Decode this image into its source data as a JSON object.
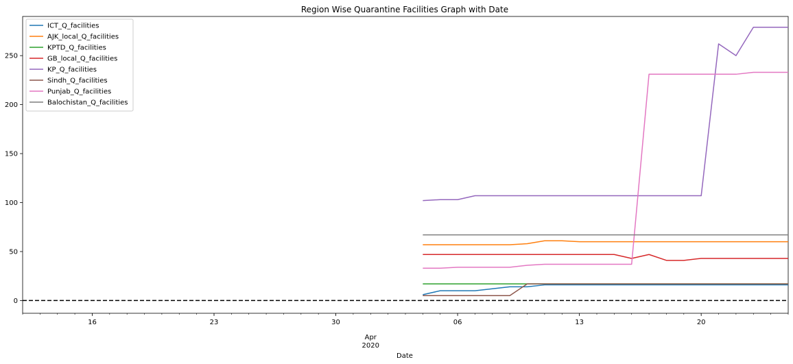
{
  "chart_data": {
    "type": "line",
    "title": "Region Wise Quarantine Facilities Graph with Date",
    "xlabel": "Date",
    "ylabel": "",
    "x_axis": {
      "type": "date",
      "range": [
        "2020-03-12",
        "2020-04-25"
      ],
      "major_ticks": [
        {
          "date": "2020-03-16",
          "label": "16"
        },
        {
          "date": "2020-03-23",
          "label": "23"
        },
        {
          "date": "2020-03-30",
          "label": "30"
        },
        {
          "date": "2020-04-06",
          "label": "06"
        },
        {
          "date": "2020-04-13",
          "label": "13"
        },
        {
          "date": "2020-04-20",
          "label": "20"
        }
      ],
      "period_label": [
        "Apr",
        "2020"
      ]
    },
    "ylim": [
      -13,
      290
    ],
    "yticks": [
      0,
      50,
      100,
      150,
      200,
      250
    ],
    "grid": false,
    "legend_position": "top-left",
    "reference_line": {
      "y": 0,
      "style": "dashed",
      "color": "#000000"
    },
    "dates": [
      "2020-04-04",
      "2020-04-05",
      "2020-04-06",
      "2020-04-07",
      "2020-04-08",
      "2020-04-09",
      "2020-04-10",
      "2020-04-11",
      "2020-04-12",
      "2020-04-13",
      "2020-04-14",
      "2020-04-15",
      "2020-04-16",
      "2020-04-17",
      "2020-04-18",
      "2020-04-19",
      "2020-04-20",
      "2020-04-21",
      "2020-04-22",
      "2020-04-23",
      "2020-04-24",
      "2020-04-25"
    ],
    "series": [
      {
        "name": "ICT_Q_facilities",
        "color": "#1f77b4",
        "values": [
          6,
          10,
          10,
          10,
          12,
          14,
          14,
          16,
          16,
          16,
          16,
          16,
          16,
          16,
          16,
          16,
          16,
          16,
          16,
          16,
          16,
          16
        ]
      },
      {
        "name": "AJK_local_Q_facilities",
        "color": "#ff7f0e",
        "values": [
          57,
          57,
          57,
          57,
          57,
          57,
          58,
          61,
          61,
          60,
          60,
          60,
          60,
          60,
          60,
          60,
          60,
          60,
          60,
          60,
          60,
          60
        ]
      },
      {
        "name": "KPTD_Q_facilities",
        "color": "#2ca02c",
        "values": [
          17,
          17,
          17,
          17,
          17,
          17,
          17,
          17,
          17,
          17,
          17,
          17,
          17,
          17,
          17,
          17,
          17,
          17,
          17,
          17,
          17,
          17
        ]
      },
      {
        "name": "GB_local_Q_facilities",
        "color": "#d62728",
        "values": [
          47,
          47,
          47,
          47,
          47,
          47,
          47,
          47,
          47,
          47,
          47,
          47,
          43,
          47,
          41,
          41,
          43,
          43,
          43,
          43,
          43,
          43
        ]
      },
      {
        "name": "KP_Q_facilities",
        "color": "#9467bd",
        "values": [
          102,
          103,
          103,
          107,
          107,
          107,
          107,
          107,
          107,
          107,
          107,
          107,
          107,
          107,
          107,
          107,
          107,
          262,
          250,
          279,
          279,
          279
        ]
      },
      {
        "name": "Sindh_Q_facilities",
        "color": "#8c564b",
        "values": [
          5,
          5,
          5,
          5,
          5,
          5,
          17,
          17,
          17,
          17,
          17,
          17,
          17,
          17,
          17,
          17,
          17,
          17,
          17,
          17,
          17,
          17
        ]
      },
      {
        "name": "Punjab_Q_facilities",
        "color": "#e377c2",
        "values": [
          33,
          33,
          34,
          34,
          34,
          34,
          36,
          37,
          37,
          37,
          37,
          37,
          37,
          231,
          231,
          231,
          231,
          231,
          231,
          233,
          233,
          233
        ]
      },
      {
        "name": "Balochistan_Q_facilities",
        "color": "#7f7f7f",
        "values": [
          67,
          67,
          67,
          67,
          67,
          67,
          67,
          67,
          67,
          67,
          67,
          67,
          67,
          67,
          67,
          67,
          67,
          67,
          67,
          67,
          67,
          67
        ]
      }
    ]
  }
}
